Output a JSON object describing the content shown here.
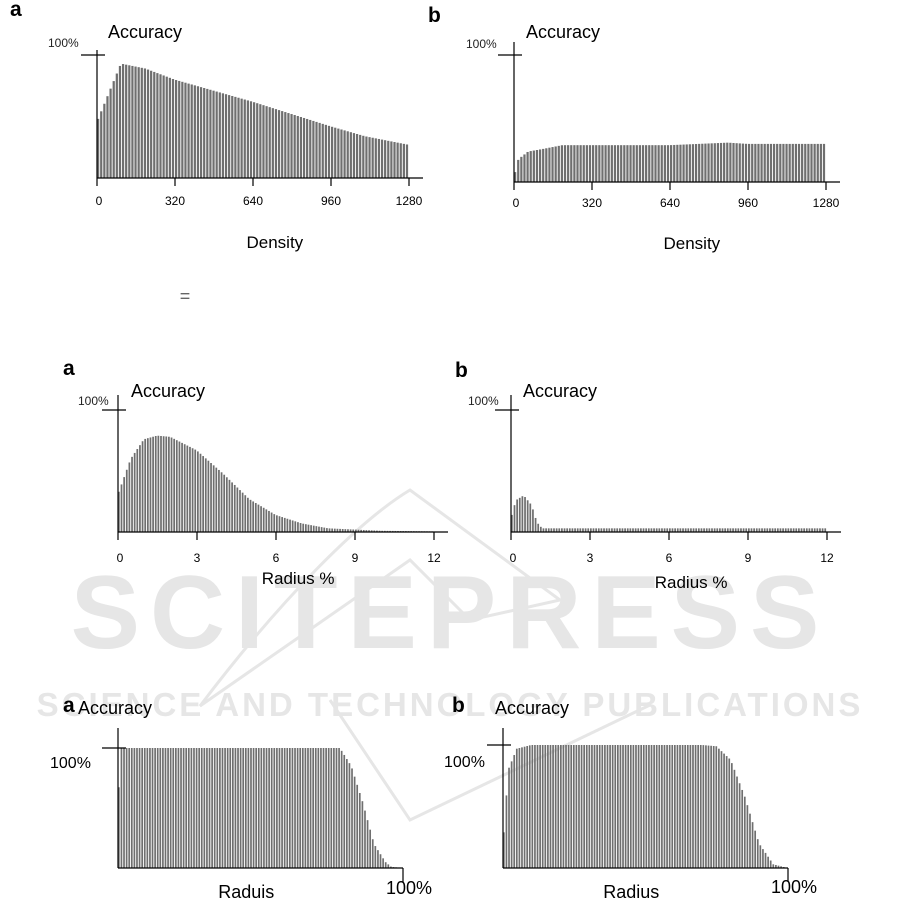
{
  "watermark": {
    "main": "SCITEPRESS",
    "sub": "SCIENCE AND TECHNOLOGY PUBLICATIONS",
    "color": "#e3e3e3"
  },
  "stray_mark": "=",
  "colors": {
    "bar": "#6f6f6f",
    "bar_edge": "#ffffff",
    "axis": "#000000"
  },
  "chart_data": [
    {
      "type": "bar",
      "panel_letter": "a",
      "ylabel": "Accuracy",
      "ymax_label": "100%",
      "xlabel": "Density",
      "xticks": [
        "0",
        "320",
        "640",
        "960",
        "1280"
      ],
      "xlim": [
        0,
        1280
      ],
      "ylim": [
        0,
        100
      ],
      "bar_count": 100,
      "x": [
        0,
        100,
        200,
        320,
        480,
        640,
        800,
        960,
        1100,
        1280
      ],
      "y": [
        45,
        93,
        89,
        80,
        71,
        62,
        52,
        42,
        34,
        27
      ]
    },
    {
      "type": "bar",
      "panel_letter": "b",
      "ylabel": "Accuracy",
      "ymax_label": "100%",
      "xlabel": "Density",
      "xticks": [
        "0",
        "320",
        "640",
        "960",
        "1280"
      ],
      "xlim": [
        0,
        1280
      ],
      "ylim": [
        0,
        100
      ],
      "bar_count": 100,
      "x": [
        0,
        20,
        60,
        120,
        200,
        320,
        640,
        880,
        960,
        1280
      ],
      "y": [
        3,
        18,
        24,
        26,
        29,
        29,
        29,
        31,
        30,
        30
      ]
    },
    {
      "type": "bar",
      "panel_letter": "a",
      "ylabel": "Accuracy",
      "ymax_label": "100%",
      "xlabel": "Radius %",
      "xticks": [
        "0",
        "3",
        "6",
        "9",
        "12"
      ],
      "xlim": [
        0,
        12
      ],
      "ylim": [
        0,
        100
      ],
      "bar_count": 120,
      "x": [
        0,
        0.5,
        1,
        1.5,
        2,
        3,
        4,
        5,
        6,
        7,
        8,
        10,
        12
      ],
      "y": [
        30,
        60,
        76,
        79,
        78,
        67,
        48,
        27,
        14,
        7,
        3,
        1,
        0.5
      ]
    },
    {
      "type": "bar",
      "panel_letter": "b",
      "ylabel": "Accuracy",
      "ymax_label": "100%",
      "xlabel": "Radius %",
      "xticks": [
        "0",
        "3",
        "6",
        "9",
        "12"
      ],
      "xlim": [
        0,
        12
      ],
      "ylim": [
        0,
        100
      ],
      "bar_count": 120,
      "x": [
        0,
        0.2,
        0.5,
        0.8,
        1,
        1.2,
        12
      ],
      "y": [
        10,
        26,
        30,
        22,
        8,
        3,
        3
      ]
    },
    {
      "type": "bar",
      "panel_letter": "a",
      "ylabel": "Accuracy",
      "ymax_label": "100%",
      "xlabel": "Raduis",
      "xticks": [
        "100%"
      ],
      "xlim": [
        0,
        100
      ],
      "ylim": [
        0,
        100
      ],
      "bar_count": 110,
      "x": [
        0,
        1,
        78,
        82,
        86,
        90,
        94,
        96,
        100
      ],
      "y": [
        40,
        100,
        100,
        85,
        55,
        20,
        5,
        1,
        0
      ]
    },
    {
      "type": "bar",
      "panel_letter": "b",
      "ylabel": "Accuracy",
      "ymax_label": "100%",
      "xlabel": "Radius",
      "xticks": [
        "100%"
      ],
      "xlim": [
        0,
        100
      ],
      "ylim": [
        0,
        100
      ],
      "bar_count": 110,
      "x": [
        0,
        2,
        5,
        10,
        70,
        75,
        80,
        85,
        90,
        95,
        100
      ],
      "y": [
        14,
        80,
        97,
        100,
        100,
        99,
        88,
        58,
        20,
        3,
        0
      ]
    }
  ]
}
